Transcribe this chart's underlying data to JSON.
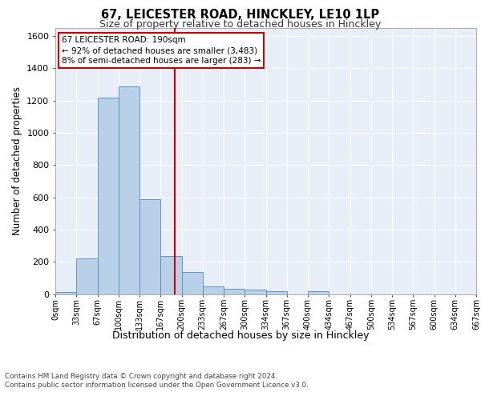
{
  "title1": "67, LEICESTER ROAD, HINCKLEY, LE10 1LP",
  "title2": "Size of property relative to detached houses in Hinckley",
  "xlabel": "Distribution of detached houses by size in Hinckley",
  "ylabel": "Number of detached properties",
  "footer1": "Contains HM Land Registry data © Crown copyright and database right 2024.",
  "footer2": "Contains public sector information licensed under the Open Government Licence v3.0.",
  "annotation_line1": "67 LEICESTER ROAD: 190sqm",
  "annotation_line2": "← 92% of detached houses are smaller (3,483)",
  "annotation_line3": "8% of semi-detached houses are larger (283) →",
  "property_value": 190,
  "bin_size": 33.5,
  "bar_values": [
    10,
    220,
    1220,
    1290,
    590,
    235,
    135,
    45,
    30,
    25,
    15,
    0,
    15,
    0,
    0,
    0,
    0,
    0,
    0,
    0
  ],
  "bar_color": "#b8d0e8",
  "bar_edge_color": "#5588bb",
  "vline_color": "#cc0000",
  "vline_x": 190,
  "ylim": [
    0,
    1650
  ],
  "yticks": [
    0,
    200,
    400,
    600,
    800,
    1000,
    1200,
    1400,
    1600
  ],
  "background_color": "#e8eef8",
  "grid_color": "#ffffff",
  "tick_labels": [
    "0sqm",
    "33sqm",
    "67sqm",
    "100sqm",
    "133sqm",
    "167sqm",
    "200sqm",
    "233sqm",
    "267sqm",
    "300sqm",
    "334sqm",
    "367sqm",
    "400sqm",
    "434sqm",
    "467sqm",
    "500sqm",
    "534sqm",
    "567sqm",
    "600sqm",
    "634sqm",
    "667sqm"
  ]
}
